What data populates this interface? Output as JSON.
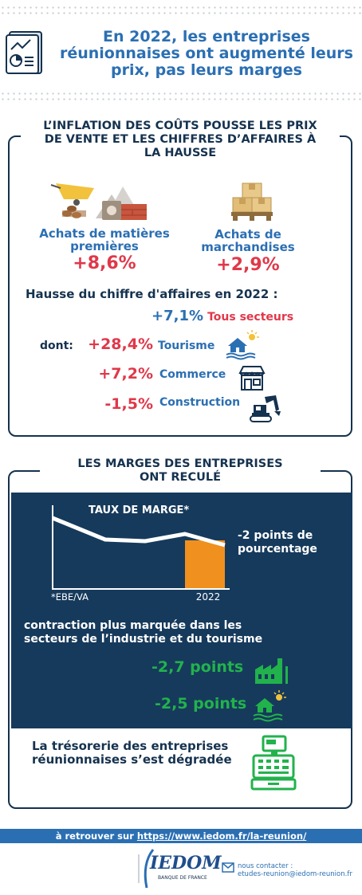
{
  "header": {
    "title_lines": [
      "En 2022, les entreprises",
      "réunionnaises ont augmenté leurs",
      "prix, pas leurs marges"
    ]
  },
  "section1": {
    "title_lines": [
      "L’INFLATION DES COÛTS POUSSE LES PRIX",
      "DE VENTE ET LES CHIFFRES D’AFFAIRES À",
      "LA HAUSSE"
    ],
    "raw_materials": {
      "label_lines": [
        "Achats de matières",
        "premières"
      ],
      "value": "+8,6%"
    },
    "goods": {
      "label_lines": [
        "Achats de",
        "marchandises"
      ],
      "value": "+2,9%"
    },
    "turnover_label": "Hausse du chiffre d'affaires en 2022 :",
    "all_sectors": {
      "value": "+7,1%",
      "label": "Tous secteurs"
    },
    "dont_label": "dont:",
    "sectors": [
      {
        "value": "+28,4%",
        "label": "Tourisme",
        "icon": "tourism-icon"
      },
      {
        "value": "+7,2%",
        "label": "Commerce",
        "icon": "shop-icon"
      },
      {
        "value": "-1,5%",
        "label": "Construction",
        "icon": "excavator-icon"
      }
    ]
  },
  "section2": {
    "title_lines": [
      "LES MARGES DES ENTREPRISES",
      "ONT RECULÉ"
    ],
    "chart_title": "TAUX DE MARGE*",
    "chart_note": "*EBE/VA",
    "chart_year": "2022",
    "change_lines": [
      "-2 points de",
      "pourcentage"
    ],
    "contraction_lines": [
      "contraction plus marquée dans les",
      "secteurs de l’industrie et du tourisme"
    ],
    "industry": {
      "value": "-2,7 points",
      "icon": "factory-icon"
    },
    "tourism": {
      "value": "-2,5 points",
      "icon": "tourism-icon"
    },
    "treasury_lines": [
      "La trésorerie des entreprises",
      "réunionnaises s’est dégradée"
    ]
  },
  "footer": {
    "prefix": "à retrouver sur ",
    "link": "https://www.iedom.fr/la-reunion/",
    "logo_text": "IEDOM",
    "logo_sub": "BANQUE DE FRANCE",
    "contact_label": "nous contacter :",
    "contact_email": "etudes-reunion@iedom-reunion.fr"
  },
  "colors": {
    "navy": "#15324f",
    "blue": "#2b6fb3",
    "red": "#e0384a",
    "green": "#22b24c",
    "orange": "#f0901e",
    "panel": "#163a5c"
  }
}
